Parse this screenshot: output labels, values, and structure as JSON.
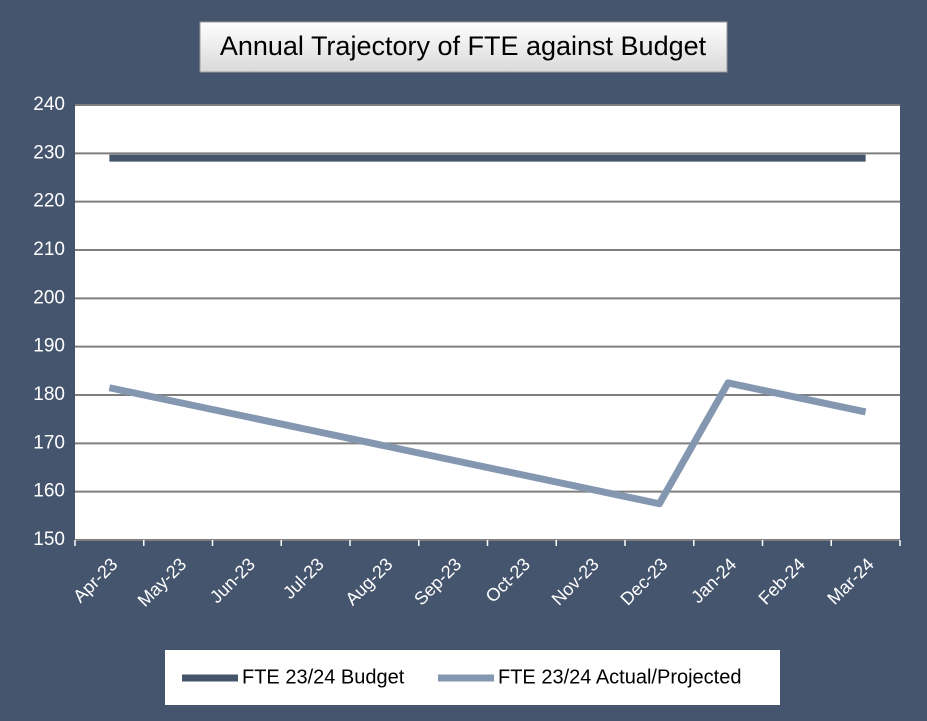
{
  "chart_data": {
    "type": "line",
    "title": "Annual Trajectory of FTE against Budget",
    "categories": [
      "Apr-23",
      "May-23",
      "Jun-23",
      "Jul-23",
      "Aug-23",
      "Sep-23",
      "Oct-23",
      "Nov-23",
      "Dec-23",
      "Jan-24",
      "Feb-24",
      "Mar-24"
    ],
    "series": [
      {
        "name": "FTE 23/24 Budget",
        "color": "#44546a",
        "values": [
          229,
          229,
          229,
          229,
          229,
          229,
          229,
          229,
          229,
          229,
          229,
          229
        ]
      },
      {
        "name": "FTE 23/24 Actual/Projected",
        "color": "#8497b0",
        "values": [
          181.5,
          178.5,
          175.5,
          172.5,
          169.5,
          166.5,
          163.5,
          160.5,
          157.5,
          182.5,
          179.5,
          176.5
        ]
      }
    ],
    "ylim": [
      150,
      240
    ],
    "yticks": [
      150,
      160,
      170,
      180,
      190,
      200,
      210,
      220,
      230,
      240
    ],
    "grid": true,
    "legend": "bottom"
  }
}
